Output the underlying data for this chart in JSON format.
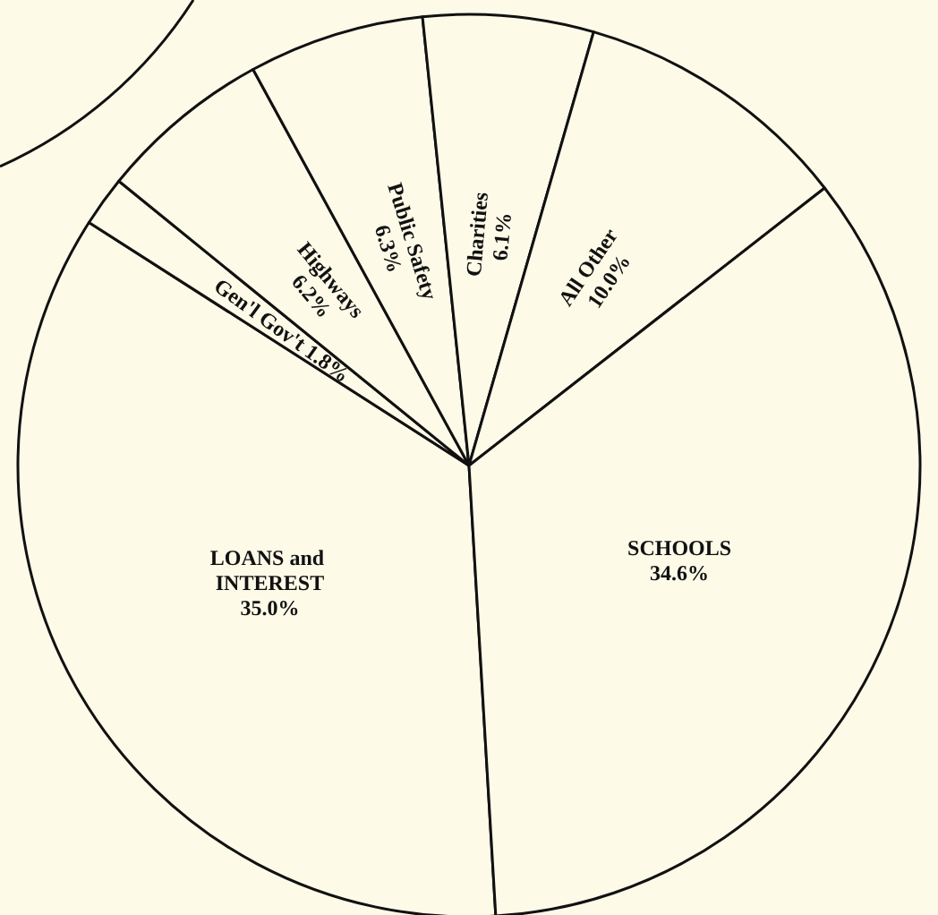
{
  "chart_data": {
    "type": "pie",
    "categories": [
      "LOANS and INTEREST",
      "Gen'l Gov't",
      "Highways",
      "Public Safety",
      "Charities",
      "All Other",
      "SCHOOLS"
    ],
    "values": [
      35.0,
      1.8,
      6.2,
      6.3,
      6.1,
      10.0,
      34.6
    ],
    "value_labels": [
      "35.0%",
      "1.8%",
      "6.2%",
      "6.3%",
      "6.1%",
      "10.0%",
      "34.6%"
    ],
    "colors": [
      "#fdfae8",
      "#fdfae8",
      "#fdfae8",
      "#fdfae8",
      "#fdfae8",
      "#fdfae8",
      "#fdfae8"
    ],
    "legend": false
  }
}
